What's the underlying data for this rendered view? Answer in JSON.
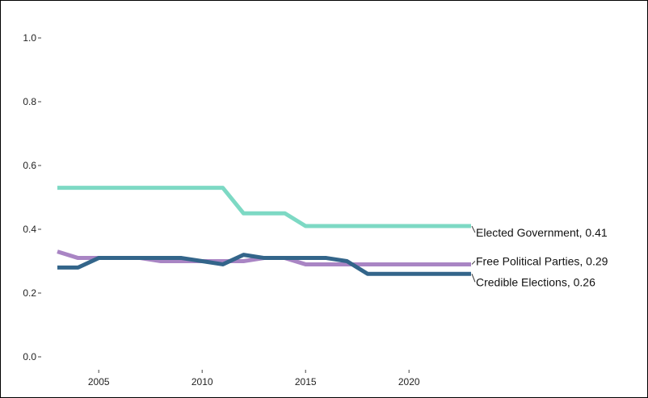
{
  "chart_data": {
    "type": "line",
    "title": "",
    "xlabel": "",
    "ylabel": "",
    "xlim": [
      2003,
      2023
    ],
    "ylim": [
      0,
      1
    ],
    "grid": false,
    "x_ticks": [
      "2005",
      "2010",
      "2015",
      "2020"
    ],
    "y_ticks": [
      "0.0",
      "0.2",
      "0.4",
      "0.6",
      "0.8",
      "1.0"
    ],
    "x": [
      2003,
      2004,
      2005,
      2006,
      2007,
      2008,
      2009,
      2010,
      2011,
      2012,
      2013,
      2014,
      2015,
      2016,
      2017,
      2018,
      2019,
      2020,
      2021,
      2022,
      2023
    ],
    "series": [
      {
        "name": "Elected Government",
        "label": "Elected Government, 0.41",
        "color": "#7dd9c4",
        "values": [
          0.53,
          0.53,
          0.53,
          0.53,
          0.53,
          0.53,
          0.53,
          0.53,
          0.53,
          0.45,
          0.45,
          0.45,
          0.41,
          0.41,
          0.41,
          0.41,
          0.41,
          0.41,
          0.41,
          0.41,
          0.41
        ]
      },
      {
        "name": "Free Political Parties",
        "label": "Free Political Parties, 0.29",
        "color": "#a985c4",
        "values": [
          0.33,
          0.31,
          0.31,
          0.31,
          0.31,
          0.3,
          0.3,
          0.3,
          0.3,
          0.3,
          0.31,
          0.31,
          0.29,
          0.29,
          0.29,
          0.29,
          0.29,
          0.29,
          0.29,
          0.29,
          0.29
        ]
      },
      {
        "name": "Credible Elections",
        "label": "Credible Elections, 0.26",
        "color": "#33658a",
        "values": [
          0.28,
          0.28,
          0.31,
          0.31,
          0.31,
          0.31,
          0.31,
          0.3,
          0.29,
          0.32,
          0.31,
          0.31,
          0.31,
          0.31,
          0.3,
          0.26,
          0.26,
          0.26,
          0.26,
          0.26,
          0.26
        ]
      }
    ]
  }
}
